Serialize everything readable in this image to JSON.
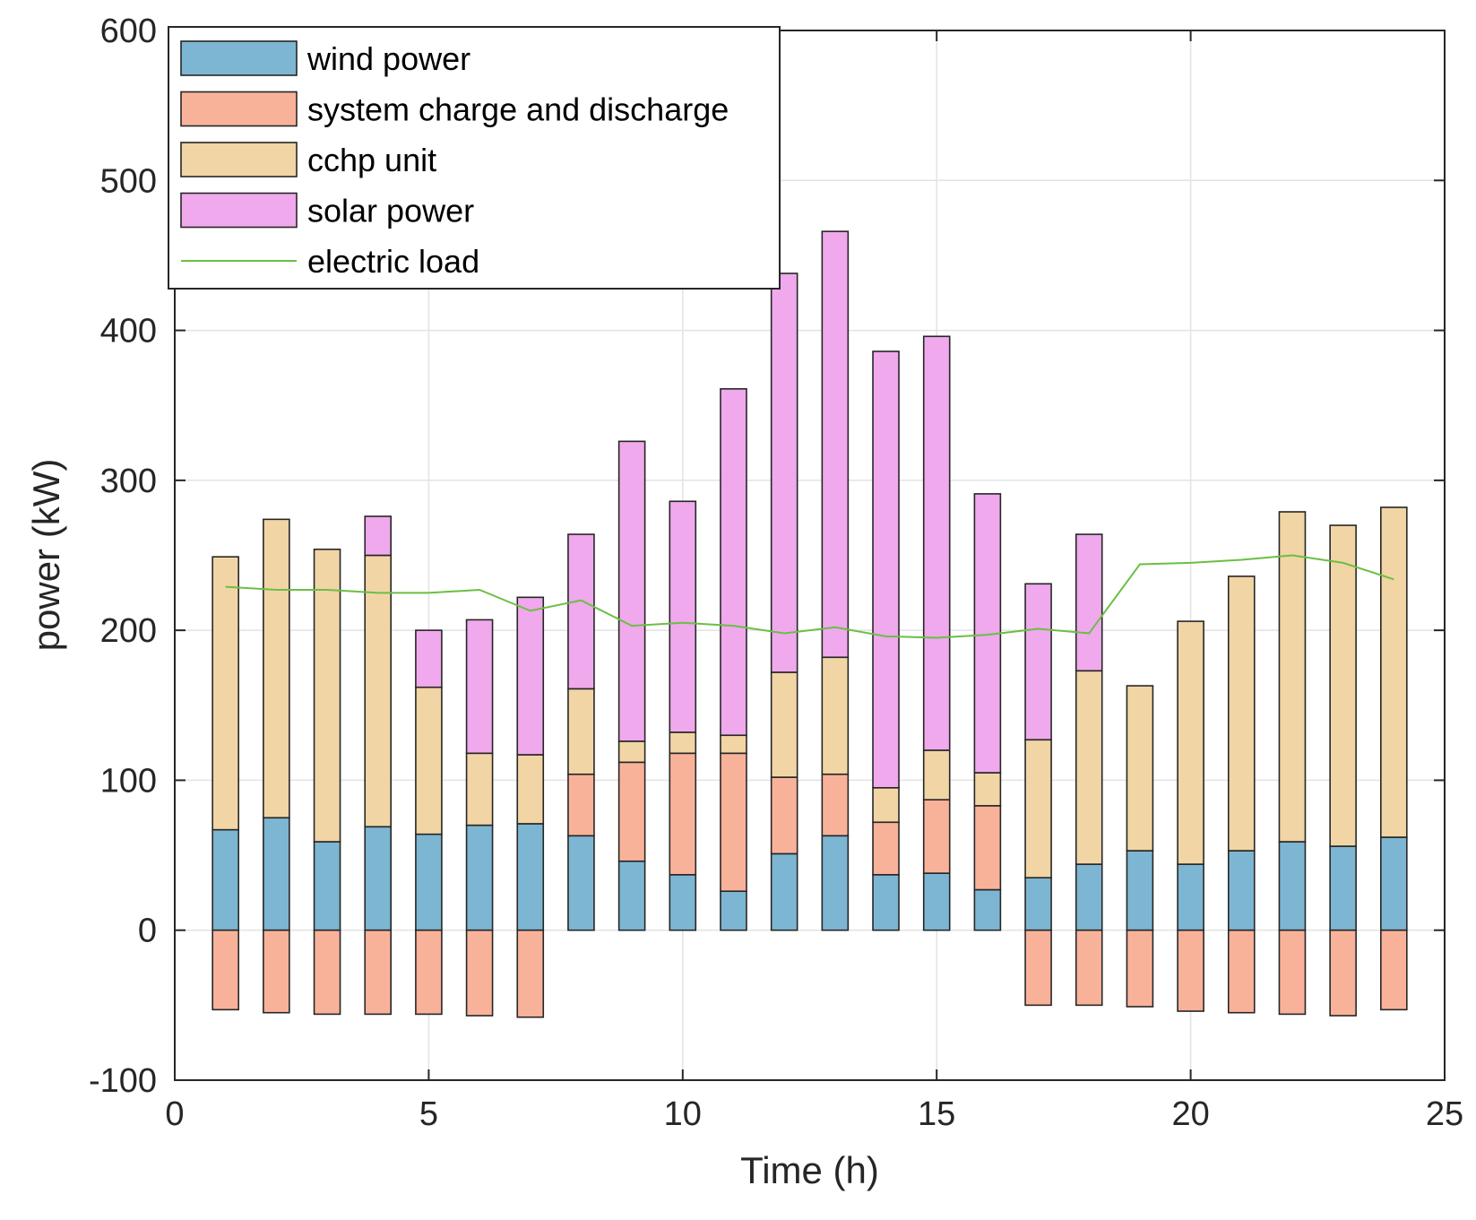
{
  "chart_data": {
    "type": "bar",
    "stacked": true,
    "title": "",
    "xlabel": "Time (h)",
    "ylabel": "power (kW)",
    "xlim": [
      0,
      25
    ],
    "ylim": [
      -100,
      600
    ],
    "xticks": [
      0,
      5,
      10,
      15,
      20,
      25
    ],
    "yticks": [
      -100,
      0,
      100,
      200,
      300,
      400,
      500,
      600
    ],
    "grid": true,
    "legend_position": "top-left",
    "x": [
      1,
      2,
      3,
      4,
      5,
      6,
      7,
      8,
      9,
      10,
      11,
      12,
      13,
      14,
      15,
      16,
      17,
      18,
      19,
      20,
      21,
      22,
      23,
      24
    ],
    "series": [
      {
        "name": "wind power",
        "kind": "bar",
        "color": "#7DB6D2",
        "values": [
          67,
          75,
          59,
          69,
          64,
          70,
          71,
          63,
          46,
          37,
          26,
          51,
          63,
          37,
          38,
          27,
          35,
          44,
          53,
          44,
          53,
          59,
          56,
          62
        ]
      },
      {
        "name": "system charge and discharge",
        "kind": "bar",
        "color": "#F9B29A",
        "values": [
          -53,
          -55,
          -56,
          -56,
          -56,
          -57,
          -58,
          41,
          66,
          81,
          92,
          51,
          41,
          35,
          49,
          56,
          -50,
          -50,
          -51,
          -54,
          -55,
          -56,
          -57,
          -53
        ]
      },
      {
        "name": "cchp unit",
        "kind": "bar",
        "color": "#F1D5A5",
        "values": [
          182,
          199,
          195,
          181,
          98,
          48,
          46,
          57,
          14,
          14,
          12,
          70,
          78,
          23,
          33,
          22,
          92,
          129,
          110,
          162,
          183,
          220,
          214,
          220
        ]
      },
      {
        "name": "solar power",
        "kind": "bar",
        "color": "#EFA9EC",
        "values": [
          0,
          0,
          0,
          26,
          38,
          89,
          105,
          103,
          200,
          154,
          231,
          266,
          284,
          291,
          276,
          186,
          104,
          91,
          0,
          0,
          0,
          0,
          0,
          0
        ]
      },
      {
        "name": "electric load",
        "kind": "line",
        "color": "#6BBF45",
        "values": [
          229,
          227,
          227,
          225,
          225,
          227,
          213,
          220,
          203,
          205,
          203,
          198,
          202,
          196,
          195,
          197,
          201,
          198,
          244,
          245,
          247,
          250,
          245,
          234
        ]
      }
    ]
  }
}
